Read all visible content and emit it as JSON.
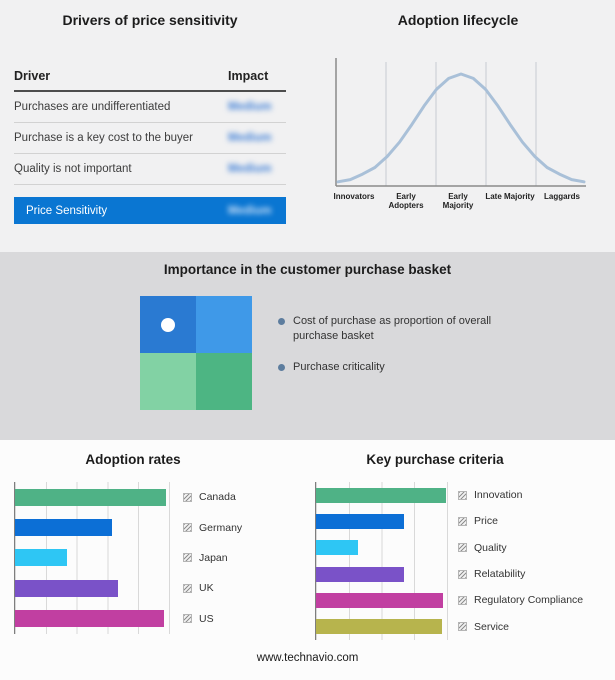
{
  "drivers_panel": {
    "title": "Drivers of price sensitivity",
    "columns": {
      "driver": "Driver",
      "impact": "Impact"
    },
    "rows": [
      {
        "driver": "Purchases are undifferentiated",
        "impact": "Medium"
      },
      {
        "driver": "Purchase is a key cost to the buyer",
        "impact": "Medium"
      },
      {
        "driver": "Quality is not important",
        "impact": "Medium"
      }
    ],
    "highlight": {
      "driver": "Price Sensitivity",
      "impact": "Medium",
      "bg": "#0a76d2"
    }
  },
  "basket_panel": {
    "title": "Importance in the customer purchase basket",
    "quadrant_colors": {
      "tl": "#2a7ad2",
      "tr": "#3f99e8",
      "bl": "#82d2a4",
      "br": "#4db583"
    },
    "bullet_color": "#5d7d9e",
    "legend": [
      {
        "label": "Cost of purchase as proportion of overall purchase basket"
      },
      {
        "label": "Purchase criticality"
      }
    ]
  },
  "footer": {
    "url": "www.technavio.com"
  },
  "chart_data": [
    {
      "type": "bar",
      "orientation": "horizontal",
      "title": "Adoption rates",
      "categories": [
        "Canada",
        "Germany",
        "Japan",
        "UK",
        "US"
      ],
      "values": [
        98,
        63,
        34,
        67,
        97
      ],
      "colors": [
        "#4fb286",
        "#0c6fd6",
        "#2ec6f4",
        "#7a52c8",
        "#c13fa1"
      ],
      "xlim": [
        0,
        100
      ],
      "grid_step_pct": 20,
      "grid": true,
      "legend_position": "right"
    },
    {
      "type": "bar",
      "orientation": "horizontal",
      "title": "Key purchase criteria",
      "categories": [
        "Innovation",
        "Price",
        "Quality",
        "Relatability",
        "Regulatory Compliance",
        "Service"
      ],
      "values": [
        99,
        67,
        32,
        67,
        97,
        96
      ],
      "colors": [
        "#4fb286",
        "#0c6fd6",
        "#2ec6f4",
        "#7a52c8",
        "#c13fa1",
        "#b7b44d"
      ],
      "xlim": [
        0,
        100
      ],
      "grid_step_pct": 25,
      "grid": true,
      "legend_position": "right"
    },
    {
      "type": "line",
      "title": "Adoption lifecycle",
      "stages": [
        "Innovators",
        "Early Adopters",
        "Early Majority",
        "Late Majority",
        "Laggards"
      ],
      "curve_color": "#a9c0d8",
      "ylim": [
        0,
        100
      ],
      "curve_points": [
        [
          0,
          2
        ],
        [
          5,
          4
        ],
        [
          10,
          9
        ],
        [
          15,
          15
        ],
        [
          20,
          25
        ],
        [
          25,
          38
        ],
        [
          30,
          54
        ],
        [
          35,
          71
        ],
        [
          40,
          86
        ],
        [
          45,
          96
        ],
        [
          50,
          100
        ],
        [
          55,
          96
        ],
        [
          60,
          86
        ],
        [
          65,
          71
        ],
        [
          70,
          54
        ],
        [
          75,
          38
        ],
        [
          80,
          25
        ],
        [
          85,
          15
        ],
        [
          90,
          9
        ],
        [
          95,
          4
        ],
        [
          100,
          2
        ]
      ]
    }
  ]
}
